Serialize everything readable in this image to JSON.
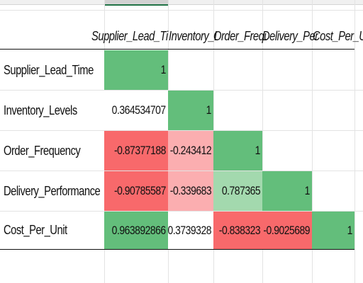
{
  "colors": {
    "strong_green": "#63be7b",
    "mid_green": "#a3d9ae",
    "strong_red": "#f8696b",
    "light_red": "#fbaeb0",
    "white": "#ffffff"
  },
  "matrix": {
    "column_headers": [
      "Supplier_Lead_Ti",
      "Inventory_Lev",
      "Order_Frequen",
      "Delivery_Perform",
      "Cost_Per_Unit"
    ],
    "rows": [
      {
        "label": "Supplier_Lead_Time",
        "cells": [
          "1",
          "",
          "",
          "",
          ""
        ]
      },
      {
        "label": "Inventory_Levels",
        "cells": [
          "0.364534707",
          "1",
          "",
          "",
          ""
        ]
      },
      {
        "label": "Order_Frequency",
        "cells": [
          "-0.87377188",
          "-0.243412",
          "1",
          "",
          ""
        ]
      },
      {
        "label": "Delivery_Performance",
        "cells": [
          "-0.90785587",
          "-0.339683",
          "0.787365",
          "1",
          ""
        ]
      },
      {
        "label": "Cost_Per_Unit",
        "cells": [
          "0.963892866",
          "0.3739328",
          "-0.838323",
          "-0.9025689",
          "1"
        ]
      }
    ]
  }
}
